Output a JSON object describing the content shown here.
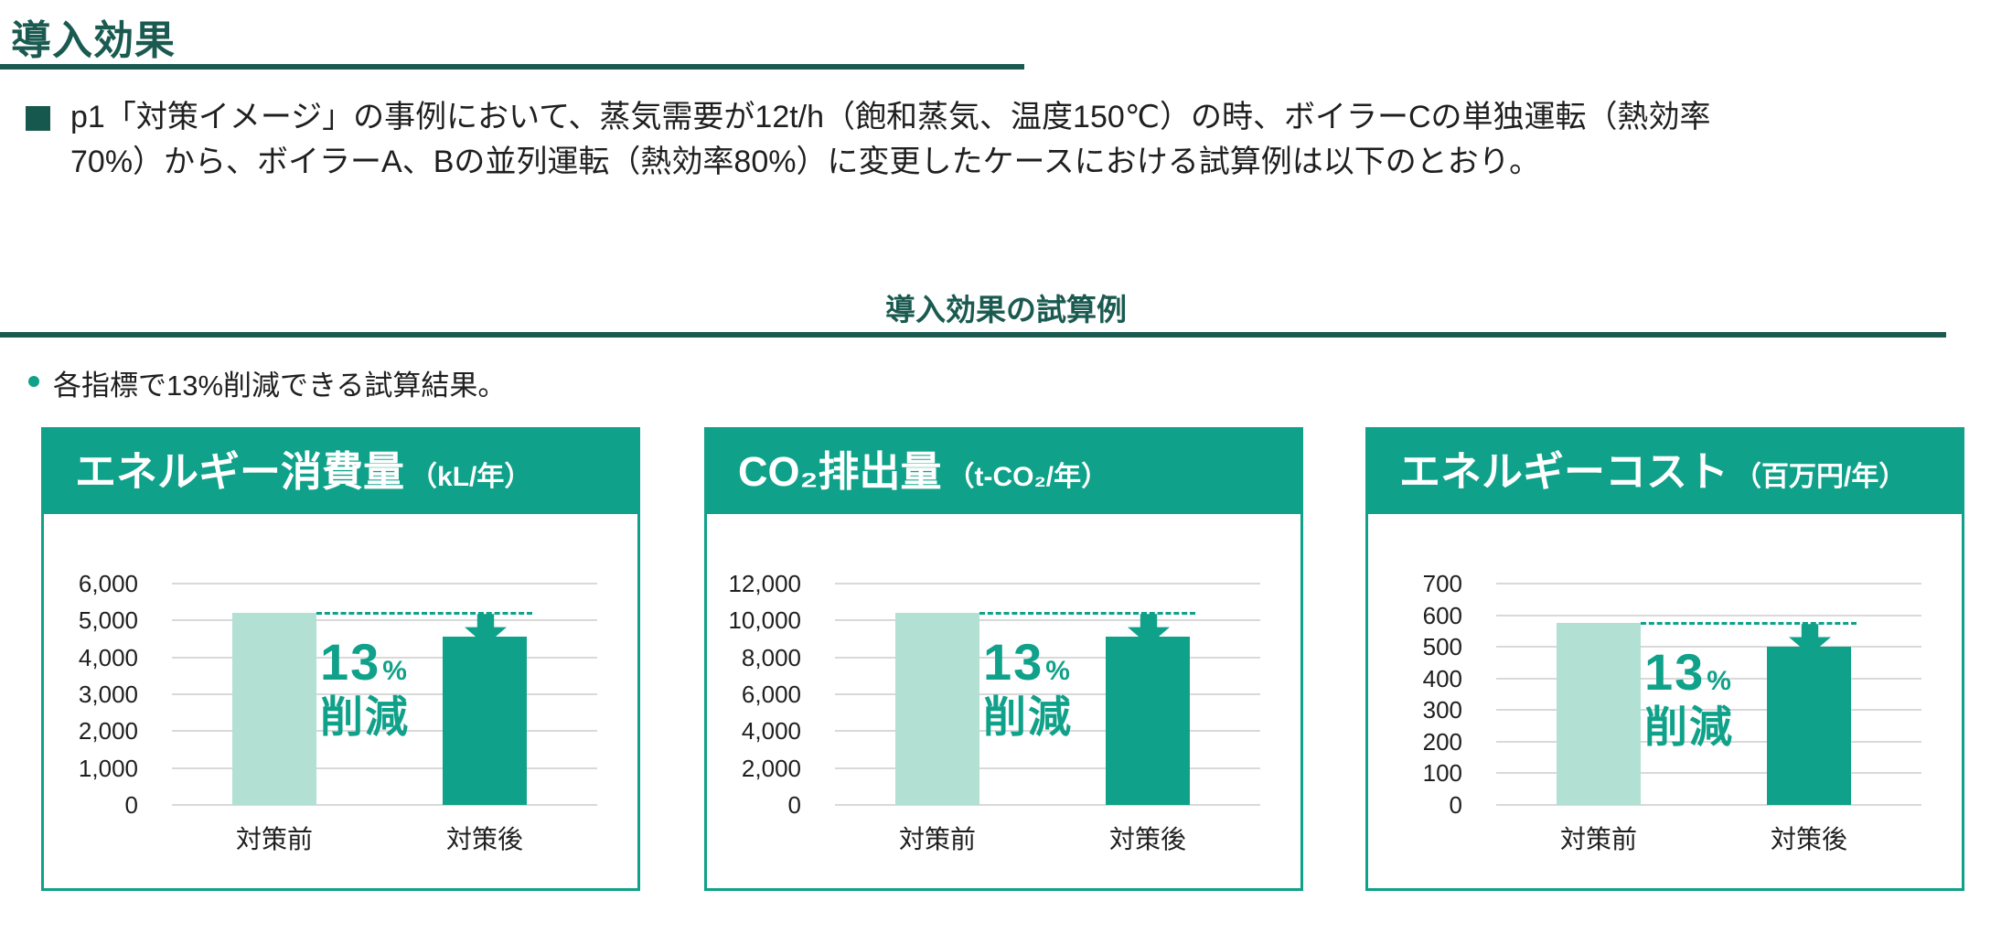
{
  "page": {
    "title": "導入効果",
    "intro": {
      "lines": [
        "p1「対策イメージ」の事例において、蒸気需要が12t/h（飽和蒸気、温度150℃）の時、ボイラーCの単独運転（熱効率",
        "70%）から、ボイラーA、Bの並列運転（熱効率80%）に変更したケースにおける試算例は以下のとおり。"
      ]
    },
    "section_title": "導入効果の試算例",
    "note": "各指標で13%削減できる試算結果。"
  },
  "colors": {
    "dark_teal": "#1a5a50",
    "teal": "#0fa189",
    "light_teal": "#b2e0d3",
    "gridline": "#d9d9d9",
    "text": "#1f1f1f"
  },
  "chart_data": [
    {
      "type": "bar",
      "title": "エネルギー消費量",
      "unit": "（kL/年）",
      "categories": [
        "対策前",
        "対策後"
      ],
      "values": [
        5200,
        4550
      ],
      "ylim": [
        0,
        6000
      ],
      "ytick_step": 1000,
      "grid": true,
      "legend": "none",
      "annotation": {
        "value": "13",
        "unit": "%",
        "label": "削減"
      }
    },
    {
      "type": "bar",
      "title": "CO₂排出量",
      "unit": "（t-CO₂/年）",
      "categories": [
        "対策前",
        "対策後"
      ],
      "values": [
        10400,
        9100
      ],
      "ylim": [
        0,
        12000
      ],
      "ytick_step": 2000,
      "grid": true,
      "legend": "none",
      "annotation": {
        "value": "13",
        "unit": "%",
        "label": "削減"
      }
    },
    {
      "type": "bar",
      "title": "エネルギーコスト",
      "unit": "（百万円/年）",
      "categories": [
        "対策前",
        "対策後"
      ],
      "values": [
        575,
        500
      ],
      "ylim": [
        0,
        700
      ],
      "ytick_step": 100,
      "grid": true,
      "legend": "none",
      "annotation": {
        "value": "13",
        "unit": "%",
        "label": "削減"
      }
    }
  ]
}
